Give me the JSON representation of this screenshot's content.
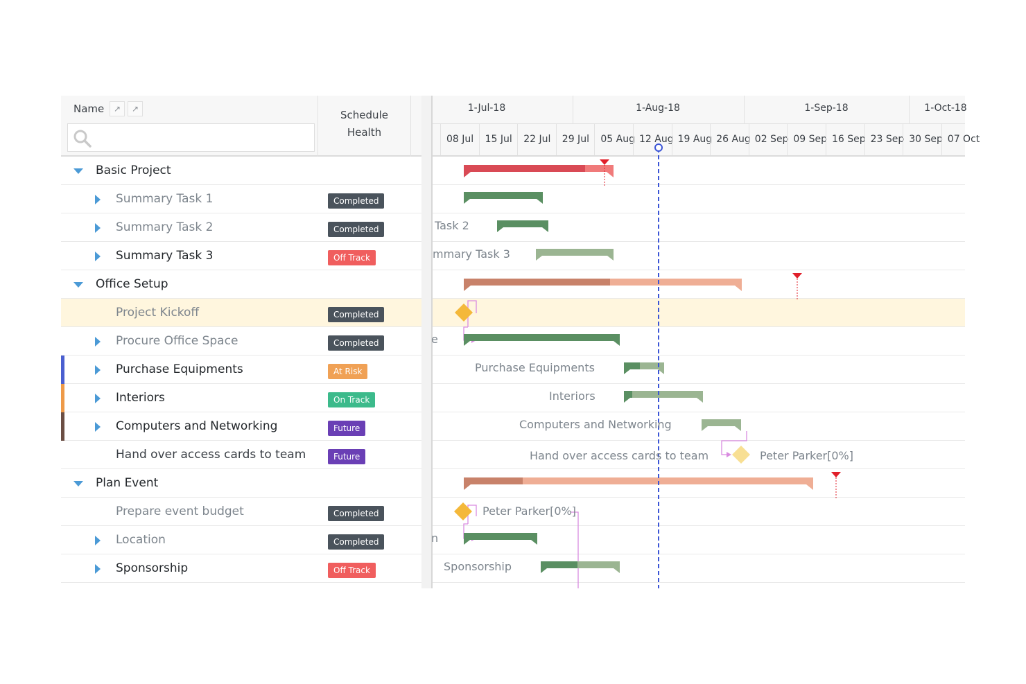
{
  "grid": {
    "name_header": "Name",
    "health_header_line1": "Schedule",
    "health_header_line2": "Health",
    "search": {
      "value": "",
      "placeholder": ""
    },
    "collapse_icon": "collapse-icon",
    "expand_icon": "expand-icon"
  },
  "timeline": {
    "months": [
      "1-Jul-18",
      "1-Aug-18",
      "1-Sep-18",
      "1-Oct-18"
    ],
    "weeks": [
      "08 Jul",
      "15 Jul",
      "22 Jul",
      "29 Jul",
      "05 Aug",
      "12 Aug",
      "19 Aug",
      "26 Aug",
      "02 Sep",
      "09 Sep",
      "16 Sep",
      "23 Sep",
      "30 Sep",
      "07 Oct"
    ]
  },
  "status_colors": {
    "Completed": "#4a535c",
    "Off Track": "#f05e5e",
    "At Risk": "#f0a155",
    "On Track": "#3cba8b",
    "Future": "#6a3fb5"
  },
  "rows": [
    {
      "name": "Basic Project",
      "level": 0,
      "caret": "down",
      "status": "",
      "style": "bold",
      "marker": "",
      "bar_label": ""
    },
    {
      "name": "Summary Task 1",
      "level": 1,
      "caret": "right",
      "status": "Completed",
      "style": "muted",
      "marker": "",
      "bar_label": ""
    },
    {
      "name": "Summary Task 2",
      "level": 1,
      "caret": "right",
      "status": "Completed",
      "style": "muted",
      "marker": "",
      "bar_label": "Task 2"
    },
    {
      "name": "Summary Task 3",
      "level": 1,
      "caret": "right",
      "status": "Off Track",
      "style": "bold",
      "marker": "",
      "bar_label": "mmary Task 3"
    },
    {
      "name": "Office Setup",
      "level": 0,
      "caret": "down",
      "status": "",
      "style": "bold",
      "marker": "",
      "bar_label": ""
    },
    {
      "name": "Project Kickoff",
      "level": 2,
      "caret": "",
      "status": "Completed",
      "style": "muted",
      "marker": "",
      "bar_label": "",
      "highlight": true
    },
    {
      "name": "Procure Office Space",
      "level": 1,
      "caret": "right",
      "status": "Completed",
      "style": "muted",
      "marker": "",
      "bar_label": "e"
    },
    {
      "name": "Purchase Equipments",
      "level": 1,
      "caret": "right",
      "status": "At Risk",
      "style": "bold",
      "marker": "#4a5fd0",
      "bar_label": "Purchase Equipments"
    },
    {
      "name": "Interiors",
      "level": 1,
      "caret": "right",
      "status": "On Track",
      "style": "bold",
      "marker": "#ee9a48",
      "bar_label": "Interiors"
    },
    {
      "name": "Computers and Networking",
      "level": 1,
      "caret": "right",
      "status": "Future",
      "style": "bold",
      "marker": "#6b4e44",
      "bar_label": "Computers and Networking"
    },
    {
      "name": "Hand over access cards to team",
      "level": 2,
      "caret": "",
      "status": "Future",
      "style": "plain",
      "marker": "",
      "bar_label": "Hand over access cards to team",
      "right_label": "Peter Parker[0%]"
    },
    {
      "name": "Plan Event",
      "level": 0,
      "caret": "down",
      "status": "",
      "style": "bold",
      "marker": "",
      "bar_label": ""
    },
    {
      "name": "Prepare event budget",
      "level": 2,
      "caret": "",
      "status": "Completed",
      "style": "muted",
      "marker": "",
      "bar_label": "",
      "right_label": "Peter Parker[0%]"
    },
    {
      "name": "Location",
      "level": 1,
      "caret": "right",
      "status": "Completed",
      "style": "muted",
      "marker": "",
      "bar_label": "n"
    },
    {
      "name": "Sponsorship",
      "level": 1,
      "caret": "right",
      "status": "Off Track",
      "style": "bold",
      "marker": "",
      "bar_label": "Sponsorship"
    }
  ],
  "bar_colors": {
    "summary_red": "#d94a55",
    "summary_red_light": "#f07a7a",
    "summary_orange": "#c8826a",
    "summary_orange_light": "#efae95",
    "task_green": "#5a8f62",
    "task_green_light": "#9bb592",
    "milestone": "#f4b83a",
    "milestone_future": "#f8df93",
    "deadline": "#e01f2a",
    "today": "#3b55d6",
    "link": "#d98be0"
  }
}
